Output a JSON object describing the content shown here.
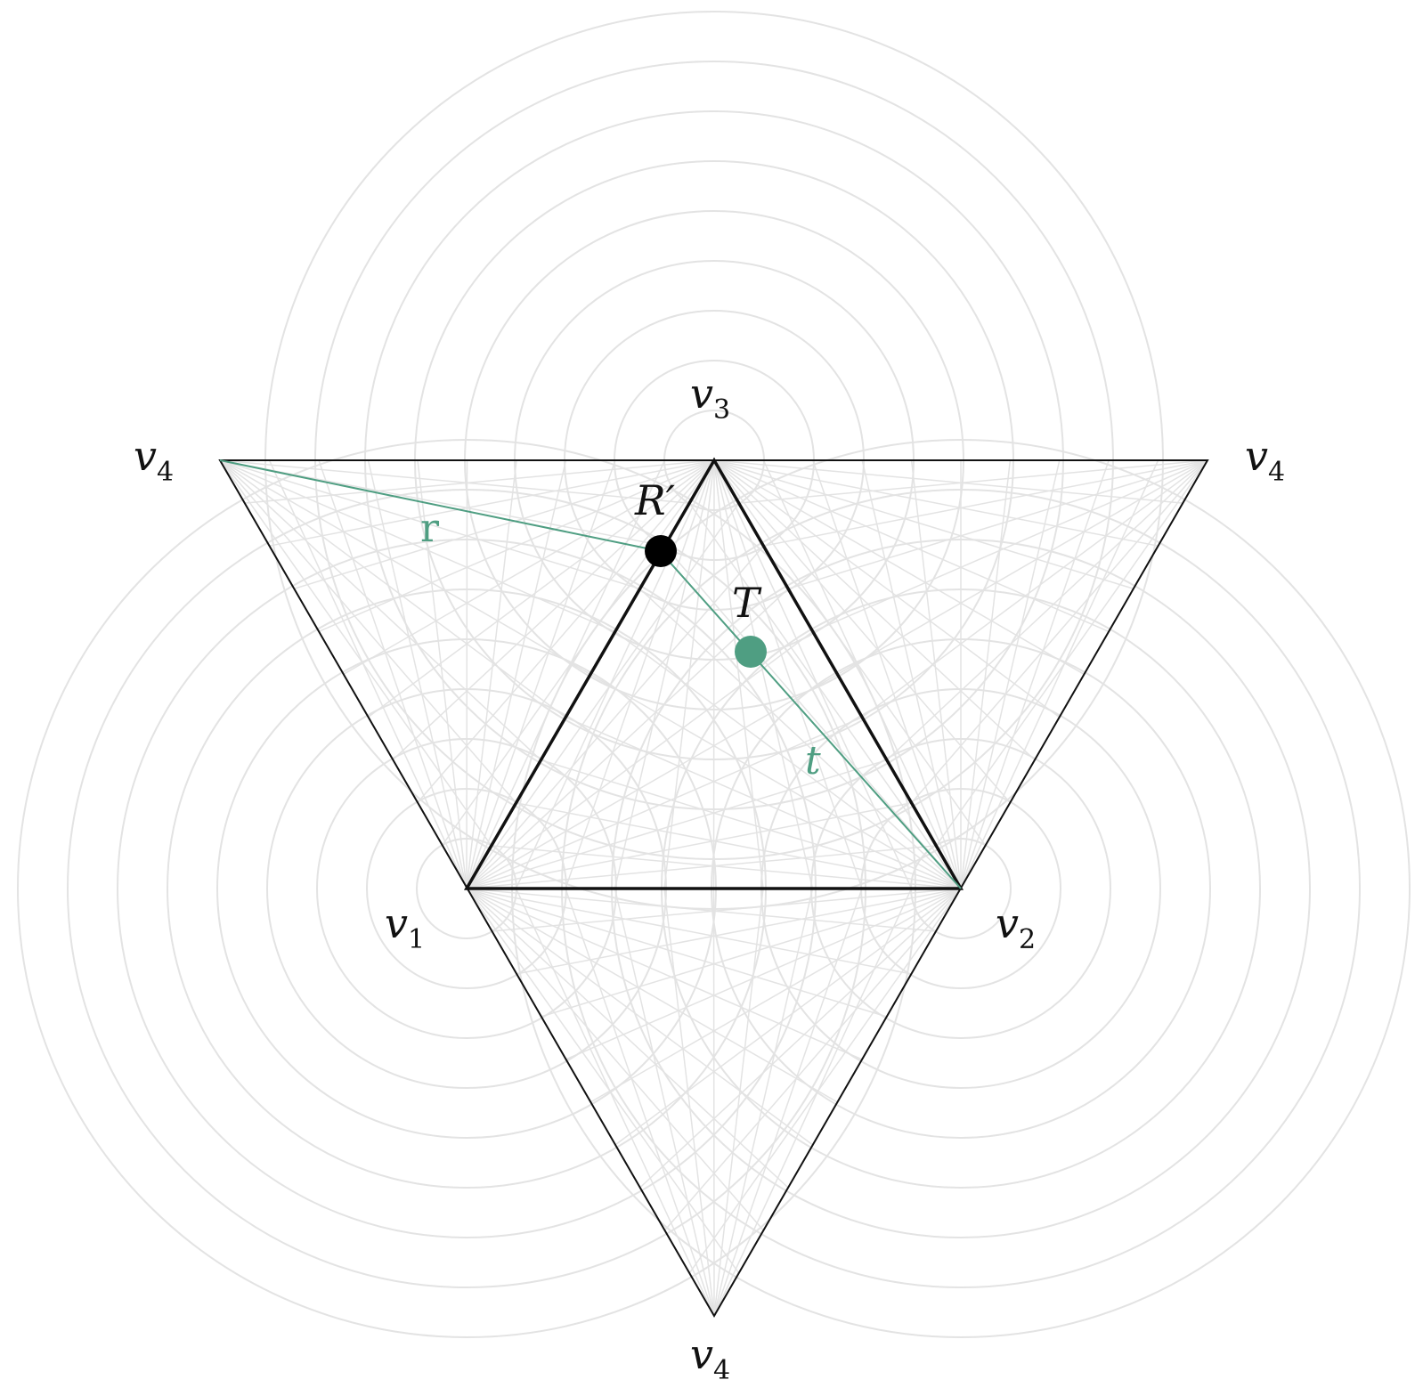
{
  "vertex_labels": {
    "v1": {
      "base": "v",
      "sub": "1"
    },
    "v2": {
      "base": "v",
      "sub": "2"
    },
    "v3": {
      "base": "v",
      "sub": "3"
    },
    "v4_left": {
      "base": "v",
      "sub": "4"
    },
    "v4_right": {
      "base": "v",
      "sub": "4"
    },
    "v4_bottom": {
      "base": "v",
      "sub": "4"
    }
  },
  "points": {
    "r_prime": {
      "label": "R′"
    },
    "t": {
      "label": "T"
    }
  },
  "segment_labels": {
    "r": "r",
    "t": "t"
  },
  "colors": {
    "accent": "#4f9e82",
    "outline": "#111111",
    "grid": "#e3e3e3",
    "point": "#000000"
  }
}
